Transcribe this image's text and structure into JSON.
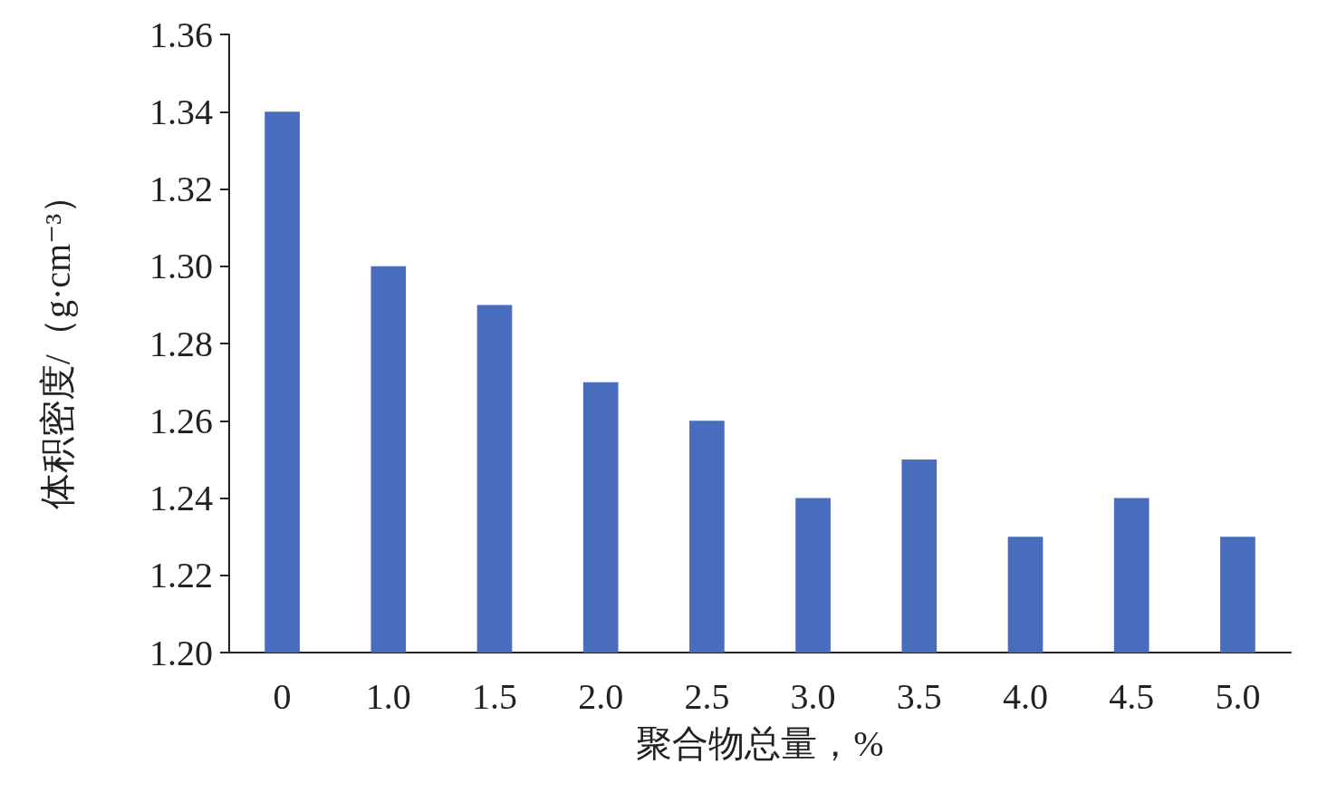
{
  "chart_data": {
    "type": "bar",
    "xlabel": "聚合物总量，%",
    "ylabel": "体积密度/（g·cm⁻³）",
    "categories": [
      "0",
      "1.0",
      "1.5",
      "2.0",
      "2.5",
      "3.0",
      "3.5",
      "4.0",
      "4.5",
      "5.0"
    ],
    "values": [
      1.34,
      1.3,
      1.29,
      1.27,
      1.26,
      1.24,
      1.25,
      1.23,
      1.24,
      1.23
    ],
    "color": "#4a6cbf",
    "ylim": [
      1.2,
      1.36
    ],
    "yticks": [
      {
        "value": 1.2,
        "label": "1.20"
      },
      {
        "value": 1.22,
        "label": "1.22"
      },
      {
        "value": 1.24,
        "label": "1.24"
      },
      {
        "value": 1.26,
        "label": "1.26"
      },
      {
        "value": 1.28,
        "label": "1.28"
      },
      {
        "value": 1.3,
        "label": "1.30"
      },
      {
        "value": 1.32,
        "label": "1.32"
      },
      {
        "value": 1.34,
        "label": "1.34"
      },
      {
        "value": 1.36,
        "label": "1.36"
      }
    ],
    "grid": false
  }
}
